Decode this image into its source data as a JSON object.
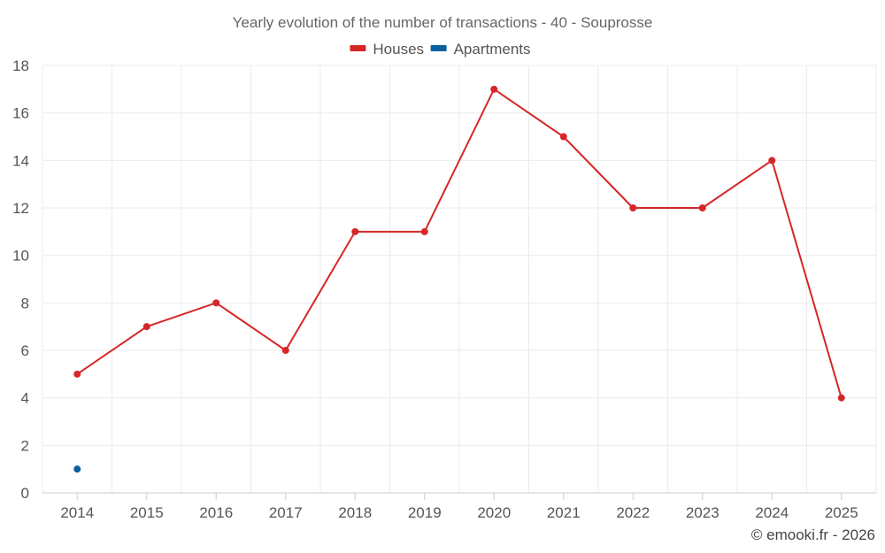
{
  "chart_data": {
    "type": "line",
    "title": "Yearly evolution of the number of transactions - 40 - Souprosse",
    "xlabel": "",
    "ylabel": "",
    "categories": [
      "2014",
      "2015",
      "2016",
      "2017",
      "2018",
      "2019",
      "2020",
      "2021",
      "2022",
      "2023",
      "2024",
      "2025"
    ],
    "ylim": [
      0,
      18
    ],
    "yticks": [
      0,
      2,
      4,
      6,
      8,
      10,
      12,
      14,
      16,
      18
    ],
    "grid": true,
    "legend_position": "top-center",
    "series": [
      {
        "name": "Houses",
        "color": "#d62728",
        "values": [
          5,
          7,
          8,
          6,
          11,
          11,
          17,
          15,
          12,
          12,
          14,
          4
        ]
      },
      {
        "name": "Apartments",
        "color": "#08619e",
        "values": [
          1,
          null,
          null,
          null,
          null,
          null,
          null,
          null,
          null,
          null,
          null,
          null
        ]
      }
    ],
    "credit": "© emooki.fr - 2026"
  }
}
